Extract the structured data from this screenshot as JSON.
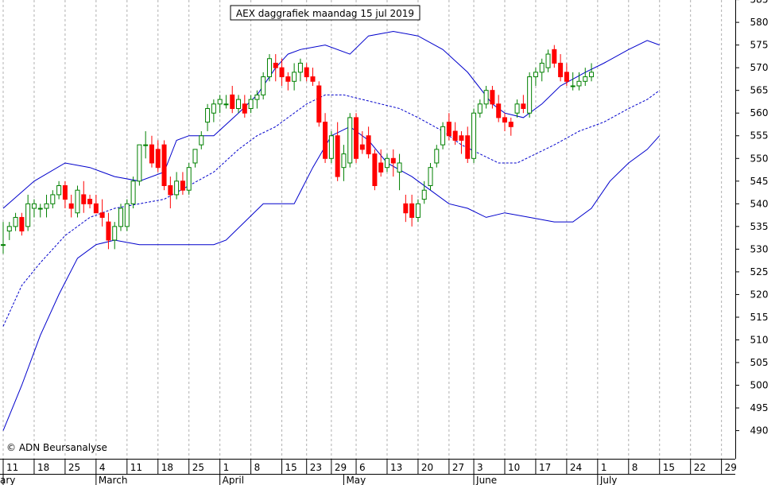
{
  "chart_data": {
    "type": "candlestick",
    "title": "AEX daggrafiek maandag 15 jul 2019",
    "credit": "© ADN Beursanalyse",
    "ylim": [
      485,
      587
    ],
    "y_ticks": [
      490,
      495,
      500,
      505,
      510,
      515,
      520,
      525,
      530,
      535,
      540,
      545,
      550,
      555,
      560,
      565,
      570,
      575,
      580,
      585
    ],
    "y_tick_labels": [
      "490",
      "495",
      "500",
      "505",
      "510",
      "515",
      "520",
      "525",
      "530",
      "535",
      "540",
      "545",
      "550",
      "555",
      "560",
      "565",
      "570",
      "575",
      "580",
      "585"
    ],
    "grid": true,
    "x_ticks": [
      {
        "label": "11",
        "i": 0
      },
      {
        "label": "18",
        "i": 5
      },
      {
        "label": "25",
        "i": 10
      },
      {
        "label": "4",
        "i": 15
      },
      {
        "label": "11",
        "i": 20
      },
      {
        "label": "18",
        "i": 25
      },
      {
        "label": "25",
        "i": 30
      },
      {
        "label": "1",
        "i": 35
      },
      {
        "label": "8",
        "i": 40
      },
      {
        "label": "15",
        "i": 45
      },
      {
        "label": "23",
        "i": 49
      },
      {
        "label": "29",
        "i": 53
      },
      {
        "label": "6",
        "i": 57
      },
      {
        "label": "13",
        "i": 62
      },
      {
        "label": "20",
        "i": 67
      },
      {
        "label": "27",
        "i": 72
      },
      {
        "label": "3",
        "i": 76
      },
      {
        "label": "10",
        "i": 81
      },
      {
        "label": "17",
        "i": 86
      },
      {
        "label": "24",
        "i": 91
      },
      {
        "label": "1",
        "i": 96
      },
      {
        "label": "8",
        "i": 101
      },
      {
        "label": "15",
        "i": 106
      },
      {
        "label": "22",
        "i": 111
      },
      {
        "label": "29",
        "i": 116
      }
    ],
    "months": [
      {
        "label": "ary",
        "i": 0
      },
      {
        "label": "March",
        "i": 15
      },
      {
        "label": "April",
        "i": 35
      },
      {
        "label": "May",
        "i": 55
      },
      {
        "label": "June",
        "i": 76
      },
      {
        "label": "July",
        "i": 96
      }
    ],
    "candles": [
      [
        531,
        536,
        529,
        531
      ],
      [
        534,
        536,
        532,
        535
      ],
      [
        535,
        538,
        534,
        537
      ],
      [
        537,
        538,
        533,
        534
      ],
      [
        535,
        542,
        534,
        540
      ],
      [
        539,
        541,
        537,
        540
      ],
      [
        539,
        540,
        537,
        539
      ],
      [
        539,
        542,
        537,
        540
      ],
      [
        540,
        543,
        539,
        542
      ],
      [
        542,
        545,
        541,
        544
      ],
      [
        544,
        545,
        539,
        541
      ],
      [
        540,
        542,
        537,
        539
      ],
      [
        538,
        544,
        537,
        543
      ],
      [
        542,
        545,
        538,
        540
      ],
      [
        541,
        542,
        539,
        540
      ],
      [
        540,
        542,
        538,
        538
      ],
      [
        538,
        541,
        535,
        537
      ],
      [
        536,
        538,
        530,
        532
      ],
      [
        532,
        536,
        530,
        535
      ],
      [
        535,
        540,
        534,
        539
      ],
      [
        535,
        541,
        534,
        540
      ],
      [
        540,
        546,
        539,
        545
      ],
      [
        545,
        553,
        544,
        553
      ],
      [
        553,
        556,
        550,
        553
      ],
      [
        553,
        555,
        548,
        549
      ],
      [
        552,
        554,
        547,
        548
      ],
      [
        553,
        554,
        543,
        544
      ],
      [
        544,
        546,
        539,
        542
      ],
      [
        542,
        547,
        541,
        545
      ],
      [
        545,
        547,
        542,
        543
      ],
      [
        543,
        549,
        542,
        548
      ],
      [
        549,
        552,
        548,
        552
      ],
      [
        553,
        556,
        552,
        555
      ],
      [
        558,
        562,
        556,
        561
      ],
      [
        560,
        563,
        558,
        562
      ],
      [
        562,
        564,
        560,
        563
      ],
      [
        562,
        564,
        561,
        562
      ],
      [
        564,
        566,
        560,
        561
      ],
      [
        561,
        564,
        560,
        563
      ],
      [
        562,
        564,
        559,
        560
      ],
      [
        561,
        564,
        560,
        563
      ],
      [
        563,
        565,
        561,
        564
      ],
      [
        564,
        569,
        563,
        568
      ],
      [
        568,
        573,
        567,
        572
      ],
      [
        571,
        573,
        567,
        570
      ],
      [
        570,
        572,
        566,
        568
      ],
      [
        568,
        569,
        565,
        567
      ],
      [
        567,
        571,
        565,
        569
      ],
      [
        569,
        572,
        567,
        571
      ],
      [
        570,
        571,
        567,
        568
      ],
      [
        568,
        570,
        566,
        567
      ],
      [
        566,
        567,
        557,
        558
      ],
      [
        558,
        560,
        549,
        550
      ],
      [
        550,
        556,
        549,
        555
      ],
      [
        555,
        558,
        545,
        546
      ],
      [
        548,
        553,
        545,
        551
      ],
      [
        549,
        560,
        548,
        559
      ],
      [
        559,
        560,
        549,
        550
      ],
      [
        553,
        556,
        551,
        552
      ],
      [
        555,
        557,
        550,
        551
      ],
      [
        551,
        552,
        543,
        544
      ],
      [
        549,
        552,
        546,
        547
      ],
      [
        548,
        551,
        547,
        550
      ],
      [
        550,
        552,
        546,
        549
      ],
      [
        547,
        551,
        543,
        549
      ],
      [
        540,
        542,
        536,
        538
      ],
      [
        540,
        542,
        535,
        537
      ],
      [
        537,
        541,
        536,
        540
      ],
      [
        541,
        545,
        540,
        543
      ],
      [
        544,
        549,
        543,
        548
      ],
      [
        549,
        553,
        548,
        552
      ],
      [
        553,
        558,
        552,
        557
      ],
      [
        558,
        560,
        554,
        555
      ],
      [
        556,
        558,
        553,
        554
      ],
      [
        555,
        556,
        551,
        554
      ],
      [
        555,
        557,
        549,
        550
      ],
      [
        550,
        561,
        549,
        560
      ],
      [
        560,
        563,
        559,
        562
      ],
      [
        562,
        566,
        561,
        565
      ],
      [
        565,
        566,
        561,
        562
      ],
      [
        562,
        564,
        558,
        559
      ],
      [
        559,
        560,
        556,
        558
      ],
      [
        558,
        559,
        555,
        557
      ],
      [
        560,
        563,
        559,
        562
      ],
      [
        562,
        564,
        560,
        561
      ],
      [
        560,
        569,
        559,
        568
      ],
      [
        568,
        570,
        566,
        569
      ],
      [
        569,
        572,
        567,
        571
      ],
      [
        570,
        574,
        569,
        573
      ],
      [
        574,
        575,
        570,
        571
      ],
      [
        571,
        573,
        567,
        568
      ],
      [
        569,
        571,
        566,
        567
      ],
      [
        566,
        569,
        565,
        566
      ],
      [
        566,
        569,
        565,
        567
      ],
      [
        567,
        570,
        566,
        568
      ],
      [
        568,
        571,
        567,
        569
      ]
    ],
    "bollinger_upper": [
      [
        0,
        539
      ],
      [
        5,
        545
      ],
      [
        10,
        549
      ],
      [
        14,
        548
      ],
      [
        18,
        546
      ],
      [
        22,
        545
      ],
      [
        26,
        547
      ],
      [
        28,
        554
      ],
      [
        30,
        555
      ],
      [
        34,
        555
      ],
      [
        38,
        560
      ],
      [
        41,
        564
      ],
      [
        44,
        570
      ],
      [
        46,
        573
      ],
      [
        48,
        574
      ],
      [
        52,
        575
      ],
      [
        56,
        573
      ],
      [
        59,
        577
      ],
      [
        63,
        578
      ],
      [
        67,
        577
      ],
      [
        71,
        574
      ],
      [
        75,
        569
      ],
      [
        79,
        562
      ],
      [
        81,
        560
      ],
      [
        84,
        559
      ],
      [
        87,
        562
      ],
      [
        90,
        566
      ],
      [
        94,
        569
      ],
      [
        97,
        571
      ],
      [
        101,
        574
      ],
      [
        104,
        576
      ],
      [
        106,
        575
      ]
    ],
    "bollinger_middle": [
      [
        0,
        513
      ],
      [
        3,
        522
      ],
      [
        6,
        527
      ],
      [
        10,
        533
      ],
      [
        14,
        537
      ],
      [
        18,
        539
      ],
      [
        22,
        540
      ],
      [
        26,
        541
      ],
      [
        30,
        544
      ],
      [
        34,
        547
      ],
      [
        38,
        552
      ],
      [
        41,
        555
      ],
      [
        44,
        557
      ],
      [
        46,
        559
      ],
      [
        49,
        562
      ],
      [
        52,
        564
      ],
      [
        55,
        564
      ],
      [
        58,
        563
      ],
      [
        61,
        562
      ],
      [
        64,
        561
      ],
      [
        67,
        559
      ],
      [
        71,
        556
      ],
      [
        74,
        553
      ],
      [
        77,
        551
      ],
      [
        80,
        549
      ],
      [
        83,
        549
      ],
      [
        86,
        551
      ],
      [
        89,
        553
      ],
      [
        93,
        556
      ],
      [
        97,
        558
      ],
      [
        101,
        561
      ],
      [
        104,
        563
      ],
      [
        106,
        565
      ]
    ],
    "bollinger_lower": [
      [
        0,
        490
      ],
      [
        3,
        500
      ],
      [
        6,
        511
      ],
      [
        9,
        520
      ],
      [
        12,
        528
      ],
      [
        15,
        531
      ],
      [
        18,
        532
      ],
      [
        22,
        531
      ],
      [
        26,
        531
      ],
      [
        30,
        531
      ],
      [
        34,
        531
      ],
      [
        36,
        532
      ],
      [
        39,
        536
      ],
      [
        42,
        540
      ],
      [
        44,
        540
      ],
      [
        47,
        540
      ],
      [
        50,
        548
      ],
      [
        53,
        555
      ],
      [
        56,
        557
      ],
      [
        59,
        554
      ],
      [
        62,
        549
      ],
      [
        66,
        546
      ],
      [
        69,
        543
      ],
      [
        72,
        540
      ],
      [
        75,
        539
      ],
      [
        78,
        537
      ],
      [
        81,
        538
      ],
      [
        85,
        537
      ],
      [
        89,
        536
      ],
      [
        92,
        536
      ],
      [
        95,
        539
      ],
      [
        98,
        545
      ],
      [
        101,
        549
      ],
      [
        104,
        552
      ],
      [
        106,
        555
      ]
    ]
  },
  "colors": {
    "up": "#008000",
    "down": "#ff0000",
    "band": "#0000cc",
    "grid": "#b0b0b0"
  }
}
